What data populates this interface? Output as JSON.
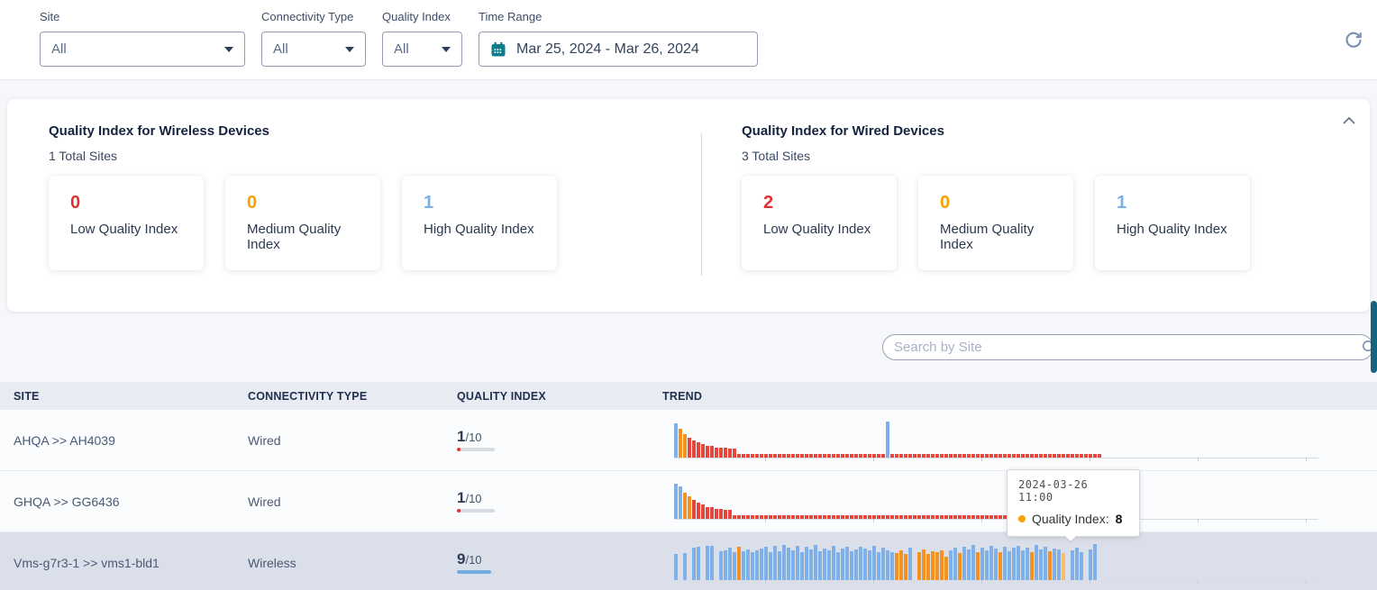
{
  "colors": {
    "low": "#e03232",
    "medium": "#f7a200",
    "high": "#79b0e8",
    "accent_teal": "#0d7c8c",
    "scrollbar": "#15647e",
    "trend": {
      "b": "#7fb1e8",
      "o": "#f59120",
      "r": "#e5473e",
      "lo": "#f6c06a",
      "g": "transparent"
    }
  },
  "icons": {
    "calendar": "calendar-icon",
    "refresh": "refresh-icon",
    "collapse": "chevron-up-icon",
    "search": "magnifier-icon",
    "dropdown": "caret-down-icon"
  },
  "filters": {
    "site": {
      "label": "Site",
      "value": "All"
    },
    "connectivity_type": {
      "label": "Connectivity Type",
      "value": "All"
    },
    "quality_index": {
      "label": "Quality Index",
      "value": "All"
    },
    "time_range": {
      "label": "Time Range",
      "value": "Mar 25, 2024 - Mar 26, 2024"
    }
  },
  "summary": {
    "wireless": {
      "title": "Quality Index for Wireless Devices",
      "total_label": "1 Total Sites",
      "cards": [
        {
          "value": "0",
          "label": "Low Quality Index",
          "color": "#e03232"
        },
        {
          "value": "0",
          "label": "Medium Quality Index",
          "color": "#f7a200"
        },
        {
          "value": "1",
          "label": "High Quality Index",
          "color": "#79b0e8"
        }
      ]
    },
    "wired": {
      "title": "Quality Index for Wired Devices",
      "total_label": "3 Total Sites",
      "cards": [
        {
          "value": "2",
          "label": "Low Quality Index",
          "color": "#e03232"
        },
        {
          "value": "0",
          "label": "Medium Quality Index",
          "color": "#f7a200"
        },
        {
          "value": "1",
          "label": "High Quality Index",
          "color": "#79b0e8"
        }
      ]
    }
  },
  "search": {
    "placeholder": "Search by Site"
  },
  "table": {
    "columns": [
      "SITE",
      "CONNECTIVITY TYPE",
      "QUALITY INDEX",
      "TREND"
    ],
    "rows": [
      {
        "site": "AHQA >> AH4039",
        "connectivity": "Wired",
        "quality_value": "1",
        "quality_max": "/10",
        "quality_bar": {
          "pct": "10%",
          "color": "#e03232"
        },
        "trend": {
          "bars": [
            [
              1,
              8.6,
              "b"
            ],
            [
              1,
              7.2,
              "o"
            ],
            [
              1,
              6.0,
              "o"
            ],
            [
              1,
              5.0,
              "r"
            ],
            [
              1,
              4.4,
              "r"
            ],
            [
              1,
              3.8,
              "r"
            ],
            [
              1,
              3.4,
              "r"
            ],
            [
              2,
              3.0,
              "r"
            ],
            [
              3,
              2.6,
              "r"
            ],
            [
              2,
              2.2,
              "r"
            ],
            [
              33,
              1,
              "r"
            ],
            [
              1,
              9.2,
              "b"
            ],
            [
              47,
              1,
              "r"
            ]
          ]
        }
      },
      {
        "site": "GHQA >> GG6436",
        "connectivity": "Wired",
        "quality_value": "1",
        "quality_max": "/10",
        "quality_bar": {
          "pct": "10%",
          "color": "#e03232"
        },
        "trend": {
          "bars": [
            [
              1,
              8.8,
              "b"
            ],
            [
              1,
              8.2,
              "b"
            ],
            [
              1,
              6.6,
              "o"
            ],
            [
              1,
              5.6,
              "o"
            ],
            [
              1,
              4.8,
              "r"
            ],
            [
              1,
              4.2,
              "r"
            ],
            [
              1,
              3.6,
              "r"
            ],
            [
              2,
              3.0,
              "r"
            ],
            [
              2,
              2.6,
              "r"
            ],
            [
              2,
              2.2,
              "r"
            ],
            [
              63,
              1,
              "r"
            ]
          ]
        }
      },
      {
        "site": "Vms-g7r3-1 >> vms1-bld1",
        "connectivity": "Wireless",
        "quality_value": "9",
        "quality_max": "/10",
        "quality_bar": {
          "pct": "90%",
          "color": "#6face4"
        },
        "trend": {
          "bars": [
            [
              1,
              6.6,
              "b"
            ],
            [
              1,
              0,
              "g"
            ],
            [
              1,
              6.9,
              "b"
            ],
            [
              1,
              0,
              "g"
            ],
            [
              1,
              8.1,
              "b"
            ],
            [
              1,
              8.3,
              "b"
            ],
            [
              1,
              0,
              "g"
            ],
            [
              1,
              8.6,
              "b"
            ],
            [
              1,
              8.6,
              "b"
            ],
            [
              1,
              0,
              "g"
            ],
            [
              1,
              7.2,
              "b"
            ],
            [
              1,
              7.6,
              "b"
            ],
            [
              1,
              8.2,
              "b"
            ],
            [
              1,
              7.0,
              "b"
            ],
            [
              1,
              8.3,
              "o"
            ],
            [
              1,
              7.2,
              "b"
            ],
            [
              1,
              7.7,
              "b"
            ],
            [
              1,
              7.0,
              "b"
            ],
            [
              1,
              7.4,
              "b"
            ],
            [
              1,
              8.0,
              "b"
            ],
            [
              1,
              8.5,
              "b"
            ],
            [
              1,
              7.1,
              "b"
            ],
            [
              1,
              8.6,
              "b"
            ],
            [
              1,
              7.3,
              "b"
            ],
            [
              1,
              8.8,
              "b"
            ],
            [
              1,
              8.2,
              "b"
            ],
            [
              1,
              7.5,
              "b"
            ],
            [
              1,
              8.6,
              "b"
            ],
            [
              1,
              7.1,
              "b"
            ],
            [
              1,
              8.4,
              "b"
            ],
            [
              1,
              7.7,
              "b"
            ],
            [
              1,
              8.8,
              "b"
            ],
            [
              1,
              7.3,
              "b"
            ],
            [
              1,
              8.0,
              "b"
            ],
            [
              1,
              7.5,
              "b"
            ],
            [
              1,
              8.6,
              "b"
            ],
            [
              1,
              7.1,
              "b"
            ],
            [
              1,
              7.9,
              "b"
            ],
            [
              1,
              8.3,
              "b"
            ],
            [
              1,
              7.3,
              "b"
            ],
            [
              1,
              7.7,
              "b"
            ],
            [
              1,
              8.5,
              "b"
            ],
            [
              1,
              8.0,
              "b"
            ],
            [
              1,
              7.4,
              "b"
            ],
            [
              1,
              8.6,
              "b"
            ],
            [
              1,
              7.0,
              "b"
            ],
            [
              1,
              8.2,
              "b"
            ],
            [
              1,
              7.6,
              "b"
            ],
            [
              1,
              7.0,
              "b"
            ],
            [
              1,
              6.8,
              "o"
            ],
            [
              1,
              7.5,
              "o"
            ],
            [
              1,
              6.6,
              "o"
            ],
            [
              1,
              8.2,
              "b"
            ],
            [
              1,
              0,
              "g"
            ],
            [
              1,
              7.1,
              "o"
            ],
            [
              1,
              7.8,
              "o"
            ],
            [
              1,
              6.7,
              "o"
            ],
            [
              1,
              7.3,
              "o"
            ],
            [
              1,
              7.0,
              "o"
            ],
            [
              1,
              7.6,
              "o"
            ],
            [
              1,
              5.9,
              "o"
            ],
            [
              1,
              7.5,
              "b"
            ],
            [
              1,
              8.1,
              "b"
            ],
            [
              1,
              6.9,
              "o"
            ],
            [
              1,
              8.5,
              "b"
            ],
            [
              1,
              7.7,
              "b"
            ],
            [
              1,
              8.8,
              "b"
            ],
            [
              1,
              7.1,
              "o"
            ],
            [
              1,
              8.2,
              "b"
            ],
            [
              1,
              7.5,
              "b"
            ],
            [
              1,
              8.6,
              "b"
            ],
            [
              1,
              7.9,
              "b"
            ],
            [
              1,
              7.0,
              "o"
            ],
            [
              1,
              8.4,
              "b"
            ],
            [
              1,
              7.3,
              "b"
            ],
            [
              1,
              8.1,
              "b"
            ],
            [
              1,
              8.6,
              "b"
            ],
            [
              1,
              7.5,
              "b"
            ],
            [
              1,
              8.2,
              "b"
            ],
            [
              1,
              7.1,
              "o"
            ],
            [
              1,
              8.8,
              "b"
            ],
            [
              1,
              7.7,
              "b"
            ],
            [
              1,
              8.4,
              "b"
            ],
            [
              1,
              7.2,
              "o"
            ],
            [
              1,
              8.0,
              "b"
            ],
            [
              1,
              7.8,
              "b"
            ],
            [
              1,
              6.9,
              "lo"
            ],
            [
              1,
              0,
              "g"
            ],
            [
              1,
              7.5,
              "b"
            ],
            [
              1,
              8.2,
              "b"
            ],
            [
              1,
              7.1,
              "b"
            ],
            [
              1,
              0,
              "g"
            ],
            [
              1,
              7.7,
              "b"
            ],
            [
              1,
              9.0,
              "b"
            ]
          ]
        },
        "highlighted": true
      }
    ]
  },
  "trend_axis": {
    "ticks": [
      101,
      221,
      341,
      461,
      581,
      701
    ]
  },
  "tooltip": {
    "timestamp": "2024-03-26 11:00",
    "label": "Quality Index:",
    "value": "8",
    "dot_color": "#f7a200"
  }
}
